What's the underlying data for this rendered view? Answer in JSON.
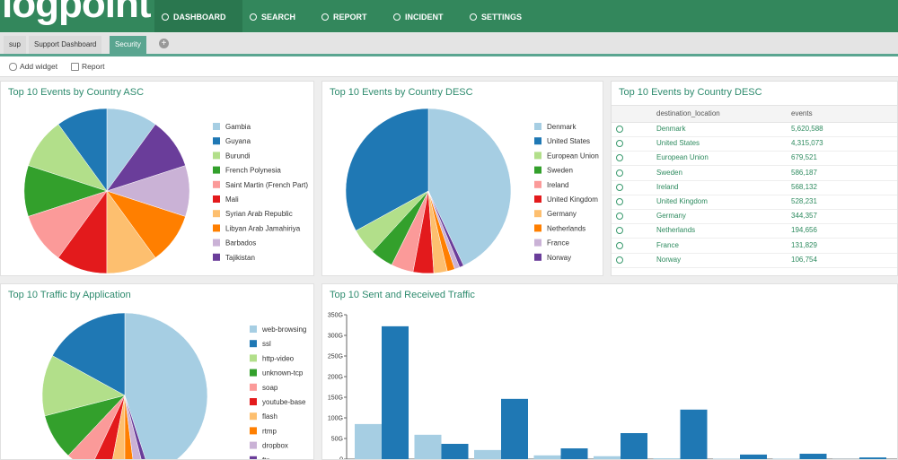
{
  "nav": {
    "logo": "logpoint",
    "items": [
      "DASHBOARD",
      "SEARCH",
      "REPORT",
      "INCIDENT",
      "SETTINGS"
    ]
  },
  "tabs": [
    "sup",
    "Support Dashboard",
    "Security"
  ],
  "toolbar": [
    "Add widget",
    "Report"
  ],
  "chart_data": [
    {
      "type": "pie",
      "title": "Top 10 Events by Country ASC",
      "categories": [
        "Gambia",
        "Guyana",
        "Burundi",
        "French Polynesia",
        "Saint Martin (French Part)",
        "Mali",
        "Syrian Arab Republic",
        "Libyan Arab Jamahiriya",
        "Barbados",
        "Tajikistan"
      ],
      "values": [
        10,
        10,
        10,
        10,
        10,
        10,
        10,
        10,
        10,
        10
      ],
      "colors": [
        "#a6cee3",
        "#1f78b4",
        "#b2df8a",
        "#33a02c",
        "#fb9a99",
        "#e31a1c",
        "#fdbf6f",
        "#ff7f00",
        "#cab2d6",
        "#6a3d9a"
      ]
    },
    {
      "type": "pie",
      "title": "Top 10 Events by Country DESC",
      "categories": [
        "Denmark",
        "United States",
        "European Union",
        "Sweden",
        "Ireland",
        "United Kingdom",
        "Germany",
        "Netherlands",
        "France",
        "Norway"
      ],
      "values": [
        5620588,
        4315073,
        679521,
        586187,
        568132,
        528231,
        344357,
        194656,
        131829,
        106754
      ],
      "colors": [
        "#a6cee3",
        "#1f78b4",
        "#b2df8a",
        "#33a02c",
        "#fb9a99",
        "#e31a1c",
        "#fdbf6f",
        "#ff7f00",
        "#cab2d6",
        "#6a3d9a"
      ]
    },
    {
      "type": "pie",
      "title": "Top 10 Traffic by Application",
      "categories": [
        "web-browsing",
        "ssl",
        "http-video",
        "unknown-tcp",
        "soap",
        "youtube-base",
        "flash",
        "rtmp",
        "dropbox",
        "ftp"
      ],
      "values": [
        45,
        17,
        12,
        9,
        5,
        4,
        3,
        2,
        2,
        1
      ],
      "colors": [
        "#a6cee3",
        "#1f78b4",
        "#b2df8a",
        "#33a02c",
        "#fb9a99",
        "#e31a1c",
        "#fdbf6f",
        "#ff7f00",
        "#cab2d6",
        "#6a3d9a"
      ]
    },
    {
      "type": "bar",
      "title": "Top 10 Sent and Received Traffic",
      "categories": [
        null,
        null,
        null,
        null,
        null,
        null,
        null,
        null,
        null
      ],
      "series": [
        {
          "color": "#a6cee3",
          "values": [
            85,
            59,
            22,
            9,
            7,
            2,
            1,
            1,
            0.5
          ]
        },
        {
          "color": "#1f78b4",
          "values": [
            322,
            37,
            146,
            26,
            63,
            120,
            11,
            13,
            4
          ]
        }
      ],
      "ylim": [
        0,
        350
      ],
      "yticks": [
        0,
        {
          "value": 50,
          "label": "50G"
        },
        {
          "value": 100,
          "label": "100G"
        },
        {
          "value": 150,
          "label": "150G"
        },
        {
          "value": 200,
          "label": "200G"
        },
        {
          "value": 250,
          "label": "250G"
        },
        {
          "value": 300,
          "label": "300G"
        },
        {
          "value": 350,
          "label": "350G"
        }
      ]
    }
  ],
  "table": {
    "title": "Top 10 Events by Country DESC",
    "columns": [
      "destination_location",
      "events"
    ],
    "rows": [
      [
        "Denmark",
        "5,620,588"
      ],
      [
        "United States",
        "4,315,073"
      ],
      [
        "European Union",
        "679,521"
      ],
      [
        "Sweden",
        "586,187"
      ],
      [
        "Ireland",
        "568,132"
      ],
      [
        "United Kingdom",
        "528,231"
      ],
      [
        "Germany",
        "344,357"
      ],
      [
        "Netherlands",
        "194,656"
      ],
      [
        "France",
        "131,829"
      ],
      [
        "Norway",
        "106,754"
      ]
    ]
  }
}
